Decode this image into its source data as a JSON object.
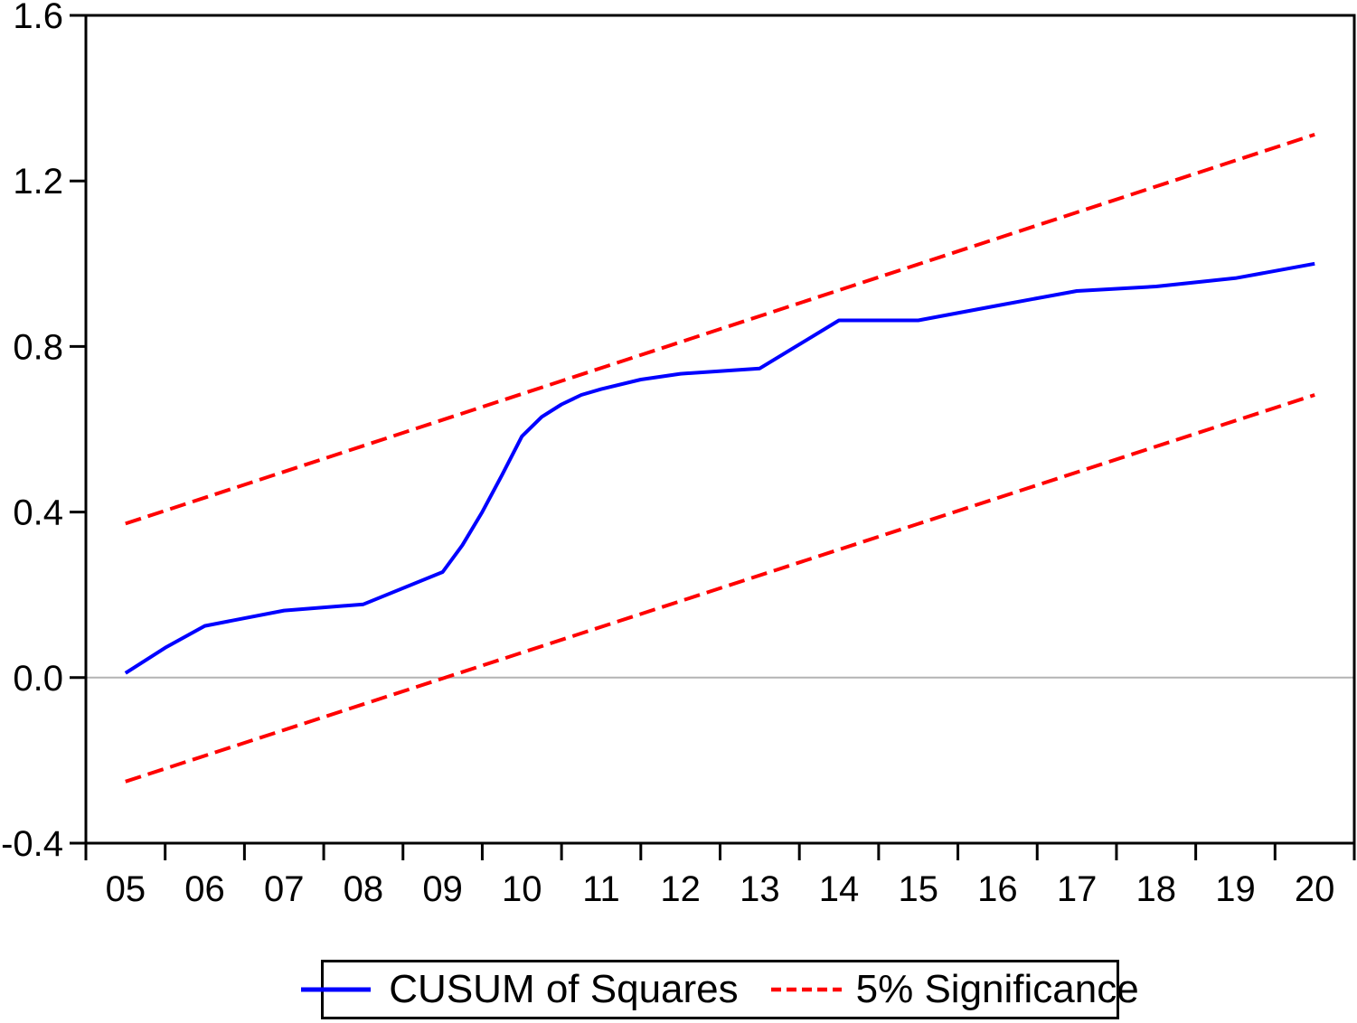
{
  "figure": {
    "background_color": "#ffffff",
    "axis_color": "#000000",
    "legend": {
      "items": [
        {
          "label": "CUSUM of Squares",
          "color": "#0000ff",
          "style": "solid"
        },
        {
          "label": "5% Significance",
          "color": "#ff0000",
          "style": "dashed"
        }
      ]
    }
  },
  "chart_data": {
    "type": "line",
    "title": "",
    "xlabel": "",
    "ylabel": "",
    "grid": false,
    "legend_position": "bottom-center-boxed",
    "x_start_year": 2005,
    "x_end_year": 2020,
    "x_tick_labels": [
      "05",
      "06",
      "07",
      "08",
      "09",
      "10",
      "11",
      "12",
      "13",
      "14",
      "15",
      "16",
      "17",
      "18",
      "19",
      "20"
    ],
    "ylim": [
      -0.4,
      1.6
    ],
    "y_ticks": [
      1.6,
      1.2,
      0.8,
      0.4,
      0.0,
      -0.4
    ],
    "y_tick_labels": [
      "1.6",
      "1.2",
      "0.8",
      "0.4",
      "0.0",
      "-0.4"
    ],
    "zero_line": {
      "value": 0.0,
      "color": "#b3b3b3"
    },
    "series": [
      {
        "name": "CUSUM of Squares",
        "color": "#0000ff",
        "style": "solid",
        "categories": [
          2005,
          2006,
          2007,
          2008,
          2009,
          2010,
          2011,
          2012,
          2013,
          2014,
          2015,
          2016,
          2017,
          2018,
          2019,
          2020
        ],
        "values": [
          0.01,
          0.12,
          0.16,
          0.18,
          0.26,
          0.58,
          0.7,
          0.73,
          0.75,
          0.86,
          0.86,
          0.9,
          0.93,
          0.94,
          0.97,
          1.0
        ],
        "render_points": [
          [
            2005,
            0.011
          ],
          [
            2005.5,
            0.072
          ],
          [
            2006,
            0.125
          ],
          [
            2007,
            0.162
          ],
          [
            2008,
            0.177
          ],
          [
            2009,
            0.255
          ],
          [
            2009.25,
            0.32
          ],
          [
            2009.5,
            0.4
          ],
          [
            2009.75,
            0.49
          ],
          [
            2010,
            0.583
          ],
          [
            2010.25,
            0.63
          ],
          [
            2010.5,
            0.66
          ],
          [
            2010.75,
            0.683
          ],
          [
            2011,
            0.697
          ],
          [
            2011.5,
            0.72
          ],
          [
            2012,
            0.734
          ],
          [
            2013,
            0.747
          ],
          [
            2014,
            0.863
          ],
          [
            2015,
            0.863
          ],
          [
            2016,
            0.899
          ],
          [
            2017,
            0.934
          ],
          [
            2018,
            0.945
          ],
          [
            2019,
            0.965
          ],
          [
            2020,
            1.0
          ]
        ]
      },
      {
        "name": "5% Significance upper bound",
        "color": "#ff0000",
        "style": "dashed",
        "render_points": [
          [
            2005,
            0.372
          ],
          [
            2020,
            1.312
          ]
        ]
      },
      {
        "name": "5% Significance lower bound",
        "color": "#ff0000",
        "style": "dashed",
        "render_points": [
          [
            2005,
            -0.251
          ],
          [
            2020,
            0.683
          ]
        ]
      }
    ]
  }
}
